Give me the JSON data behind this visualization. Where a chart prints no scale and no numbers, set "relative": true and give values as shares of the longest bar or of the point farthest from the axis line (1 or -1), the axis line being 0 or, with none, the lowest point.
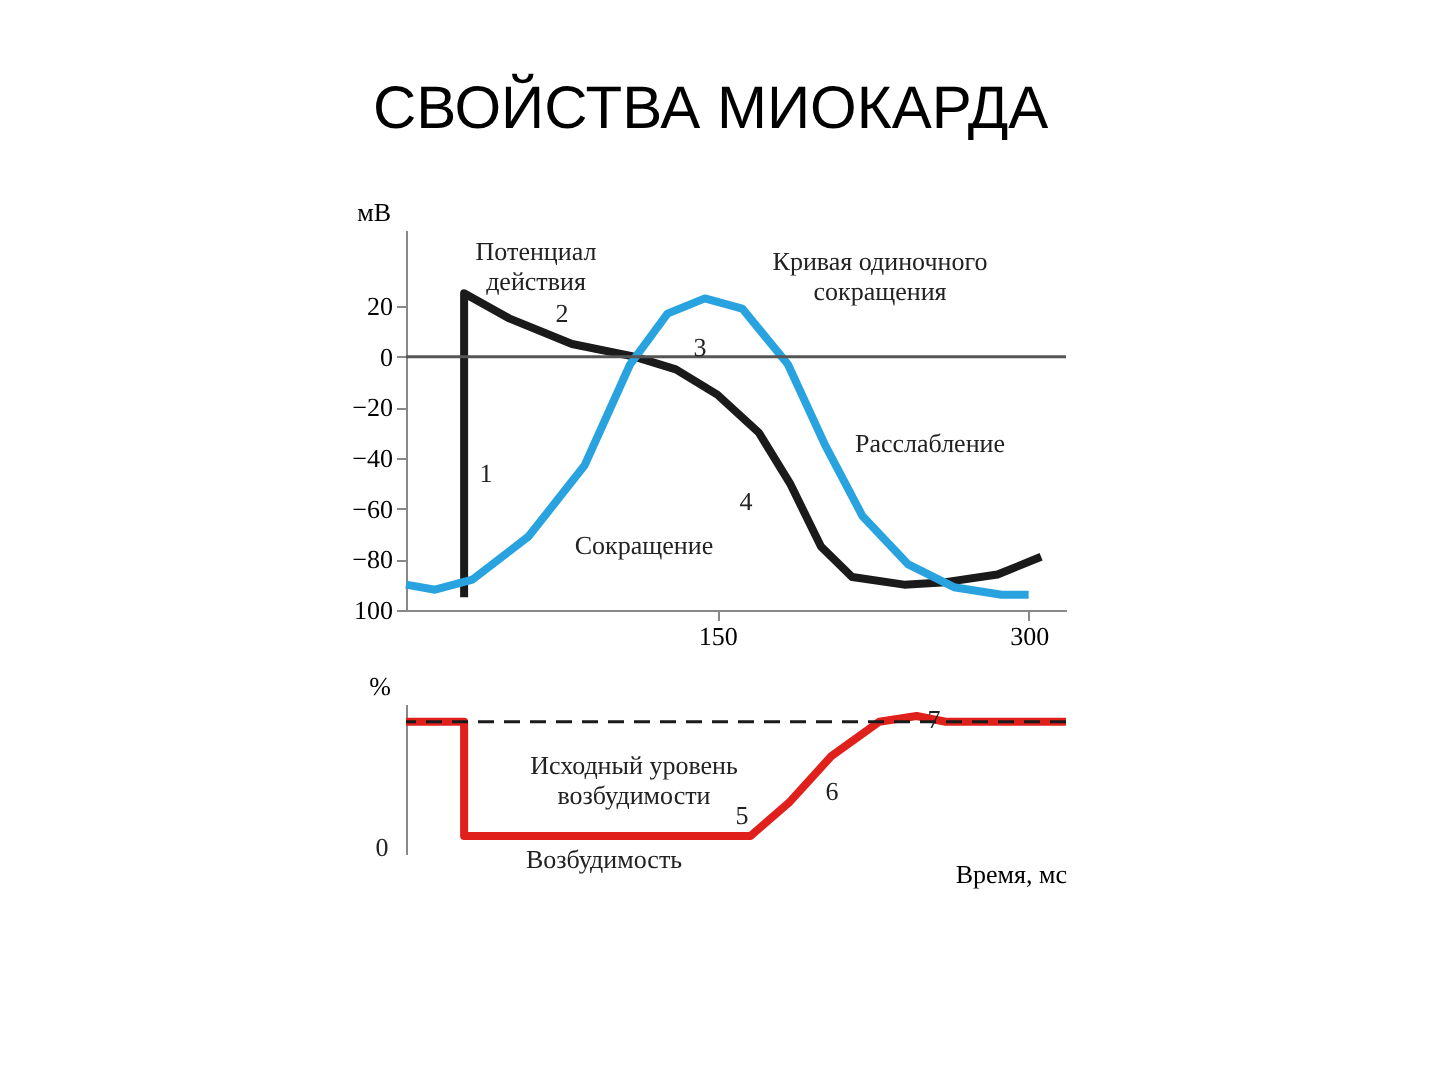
{
  "chart_data": [
    {
      "type": "line",
      "title": "СВОЙСТВА МИОКАРДА",
      "ylabel": "мВ",
      "xlim": [
        0,
        318
      ],
      "ylim": [
        -100,
        50
      ],
      "xticks": [
        150,
        300
      ],
      "yticks": [
        20,
        0,
        -20,
        -40,
        -60,
        -80,
        {
          "value": -100,
          "label": "100"
        }
      ],
      "grid": false,
      "legend": false,
      "marker": "none",
      "line_style": "solid",
      "series": [
        {
          "color": "#1a1a1a",
          "x": [
            28,
            28,
            50,
            80,
            110,
            130,
            150,
            170,
            185,
            200,
            215,
            240,
            260,
            285,
            306
          ],
          "values": [
            -95,
            25,
            15,
            5,
            0,
            -5,
            -15,
            -30,
            -50,
            -75,
            -87,
            -90,
            -89,
            -86,
            -79
          ]
        },
        {
          "color": "#29a3e0",
          "x": [
            0,
            14,
            32,
            59,
            86,
            108,
            126,
            144,
            162,
            184,
            202,
            220,
            242,
            264,
            287,
            300
          ],
          "values": [
            -90,
            -92,
            -88,
            -71,
            -43,
            -3,
            17,
            23,
            19,
            -3,
            -35,
            -63,
            -82,
            -91,
            -94,
            -94
          ]
        }
      ],
      "ref_lines": [
        {
          "axis": "y",
          "value": 0,
          "color": "#555555",
          "line_style": "solid"
        }
      ],
      "annotations": [
        "Потенциал\nдействия",
        "Кривая одиночного\nсокращения",
        "Сокращение",
        "Расслабление",
        "1",
        "2",
        "3",
        "4"
      ]
    },
    {
      "type": "line",
      "relative": true,
      "xlabel": "Время, мс",
      "ylabel": "%",
      "xlim": [
        0,
        318
      ],
      "grid": false,
      "legend": false,
      "tick_labels": false,
      "marker": "none",
      "line_style": "solid",
      "series": [
        {
          "color": "#e0201b",
          "x": [
            0,
            28,
            28,
            166,
            185,
            205,
            228,
            246,
            260,
            318
          ],
          "values": [
            0.952,
            0.952,
            0,
            0,
            0.286,
            0.667,
            0.952,
            1,
            0.952,
            0.952
          ]
        }
      ],
      "ref_lines": [
        {
          "axis": "y",
          "value": 0.952,
          "color": "#1a1a1a",
          "line_style": "dashed"
        }
      ],
      "annotations": [
        "Исходный уровень\nвозбудимости",
        "Возбудимость",
        "5",
        "6",
        "7",
        "0"
      ]
    }
  ]
}
